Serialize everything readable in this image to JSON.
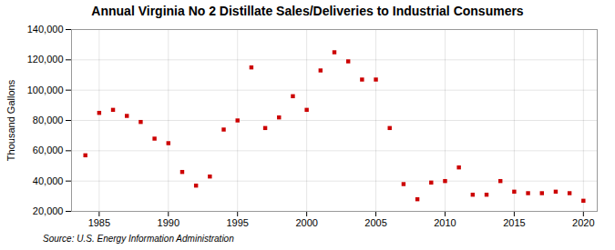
{
  "chart_data": {
    "type": "scatter",
    "title": "Annual Virginia No 2 Distillate Sales/Deliveries to Industrial Consumers",
    "ylabel": "Thousand Gallons",
    "source": "Source: U.S. Energy Information Administration",
    "x": [
      1984,
      1985,
      1986,
      1987,
      1988,
      1989,
      1990,
      1991,
      1992,
      1993,
      1994,
      1995,
      1996,
      1997,
      1998,
      1999,
      2000,
      2001,
      2002,
      2003,
      2004,
      2005,
      2006,
      2007,
      2008,
      2009,
      2010,
      2011,
      2012,
      2013,
      2014,
      2015,
      2016,
      2017,
      2018,
      2019,
      2020
    ],
    "values": [
      57000,
      85000,
      87000,
      83000,
      79000,
      68000,
      65000,
      46000,
      37000,
      43000,
      74000,
      80000,
      115000,
      75000,
      82000,
      96000,
      87000,
      113000,
      125000,
      119000,
      107000,
      107000,
      75000,
      38000,
      28000,
      39000,
      40000,
      49000,
      31000,
      31000,
      40000,
      33000,
      32000,
      32000,
      33000,
      32000,
      27000
    ],
    "color": "#cc0000",
    "marker": "square",
    "xlim": [
      1983,
      2021
    ],
    "xticks": [
      1985,
      1990,
      1995,
      2000,
      2005,
      2010,
      2015,
      2020
    ],
    "ylim": [
      20000,
      140000
    ],
    "yticks": [
      {
        "value": 20000,
        "label": "20,000"
      },
      {
        "value": 40000,
        "label": "40,000"
      },
      {
        "value": 60000,
        "label": "60,000"
      },
      {
        "value": 80000,
        "label": "80,000"
      },
      {
        "value": 100000,
        "label": "100,000"
      },
      {
        "value": 120000,
        "label": "120,000"
      },
      {
        "value": 140000,
        "label": "140,000"
      }
    ],
    "grid": true
  }
}
